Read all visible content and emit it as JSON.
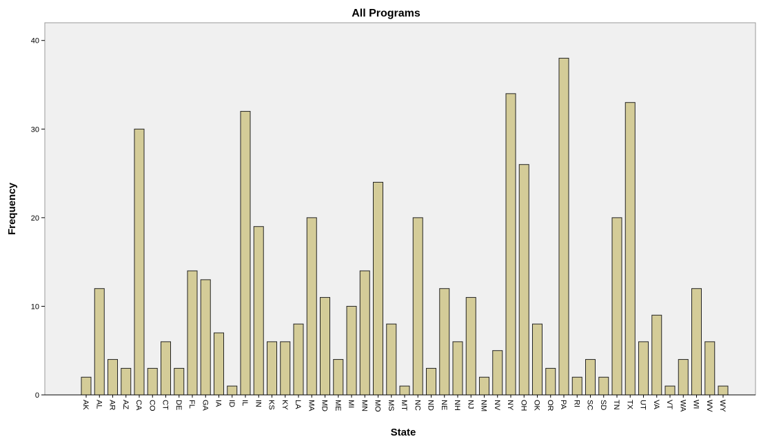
{
  "chart_data": {
    "type": "bar",
    "title": "All Programs",
    "xlabel": "State",
    "ylabel": "Frequency",
    "ylim": [
      0,
      42
    ],
    "yticks": [
      0,
      10,
      20,
      30,
      40
    ],
    "grid": false,
    "colors": {
      "bar_fill": "#d4cc98",
      "bar_stroke": "#222222",
      "plot_bg": "#f0f0f0"
    },
    "categories": [
      "AK",
      "AL",
      "AR",
      "AZ",
      "CA",
      "CO",
      "CT",
      "DE",
      "FL",
      "GA",
      "IA",
      "ID",
      "IL",
      "IN",
      "KS",
      "KY",
      "LA",
      "MA",
      "MD",
      "ME",
      "MI",
      "MN",
      "MO",
      "MS",
      "MT",
      "NC",
      "ND",
      "NE",
      "NH",
      "NJ",
      "NM",
      "NV",
      "NY",
      "OH",
      "OK",
      "OR",
      "PA",
      "RI",
      "SC",
      "SD",
      "TN",
      "TX",
      "UT",
      "VA",
      "VT",
      "WA",
      "WI",
      "WV",
      "WY"
    ],
    "values": [
      2,
      12,
      4,
      3,
      30,
      3,
      6,
      3,
      14,
      13,
      7,
      1,
      32,
      19,
      6,
      6,
      8,
      20,
      11,
      4,
      10,
      14,
      24,
      8,
      1,
      20,
      3,
      12,
      6,
      11,
      2,
      5,
      34,
      26,
      8,
      3,
      38,
      2,
      4,
      2,
      20,
      33,
      6,
      9,
      1,
      4,
      12,
      6,
      1
    ]
  }
}
